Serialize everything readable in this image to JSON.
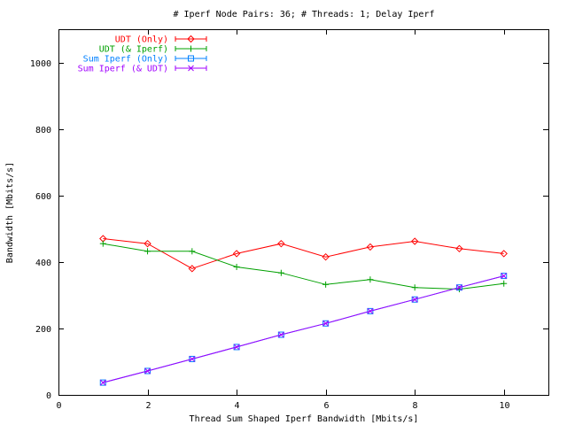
{
  "chart_data": {
    "type": "line",
    "title": "# Iperf Node Pairs: 36; # Threads: 1; Delay Iperf",
    "xlabel": "Thread Sum Shaped Iperf Bandwidth [Mbits/s]",
    "ylabel": "Bandwidth [Mbits/s]",
    "xlim": [
      0,
      11
    ],
    "ylim": [
      0,
      1100
    ],
    "x_ticks": [
      0,
      2,
      4,
      6,
      8,
      10
    ],
    "y_ticks": [
      0,
      200,
      400,
      600,
      800,
      1000
    ],
    "grid": false,
    "legend_position": "top-left",
    "x": [
      1,
      2,
      3,
      4,
      5,
      6,
      7,
      8,
      9,
      10
    ],
    "series": [
      {
        "name": "UDT (Only)",
        "color": "#ff0000",
        "marker": "diamond",
        "values": [
          470,
          455,
          380,
          425,
          455,
          415,
          445,
          462,
          440,
          425
        ]
      },
      {
        "name": "UDT (& Iperf)",
        "color": "#00a000",
        "marker": "plus",
        "values": [
          455,
          432,
          432,
          385,
          367,
          332,
          347,
          323,
          318,
          335
        ]
      },
      {
        "name": "Sum Iperf (Only)",
        "color": "#0080ff",
        "marker": "square",
        "values": [
          37,
          72,
          108,
          144,
          181,
          215,
          252,
          287,
          323,
          358
        ]
      },
      {
        "name": "Sum Iperf (& UDT)",
        "color": "#a000ff",
        "marker": "x",
        "values": [
          37,
          72,
          108,
          144,
          181,
          215,
          252,
          287,
          323,
          358
        ]
      }
    ]
  }
}
